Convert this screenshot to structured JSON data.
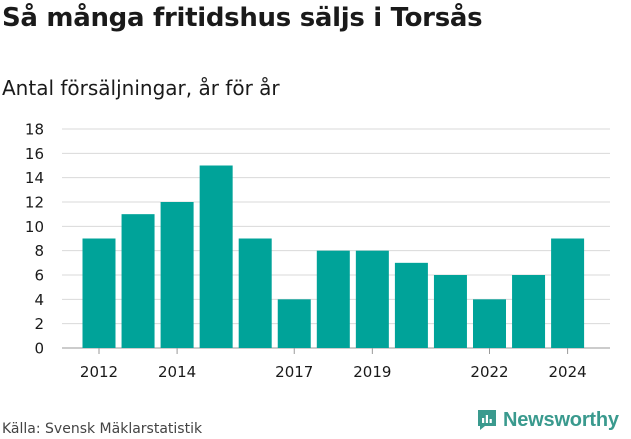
{
  "header": {
    "title": "Så många fritidshus säljs i Torsås",
    "subtitle": "Antal försäljningar, år för år"
  },
  "footer": {
    "source": "Källa: Svensk Mäklarstatistik",
    "brand": "Newsworthy",
    "brand_icon": "newsworthy-logo-icon"
  },
  "colors": {
    "bar": "#00a399",
    "grid": "#d9d9d9",
    "brand": "#3a9a8e"
  },
  "chart_data": {
    "type": "bar",
    "x": [
      2012,
      2013,
      2014,
      2015,
      2016,
      2017,
      2018,
      2019,
      2020,
      2021,
      2022,
      2023,
      2024
    ],
    "values": [
      9,
      11,
      12,
      15,
      9,
      4,
      8,
      8,
      7,
      6,
      4,
      6,
      9
    ],
    "x_tick_labels": [
      "2012",
      "2014",
      "2017",
      "2019",
      "2022",
      "2024"
    ],
    "y_ticks": [
      0,
      2,
      4,
      6,
      8,
      10,
      12,
      14,
      16,
      18
    ],
    "ylim": [
      0,
      18
    ],
    "grid": true,
    "title": "Så många fritidshus säljs i Torsås",
    "subtitle": "Antal försäljningar, år för år"
  }
}
